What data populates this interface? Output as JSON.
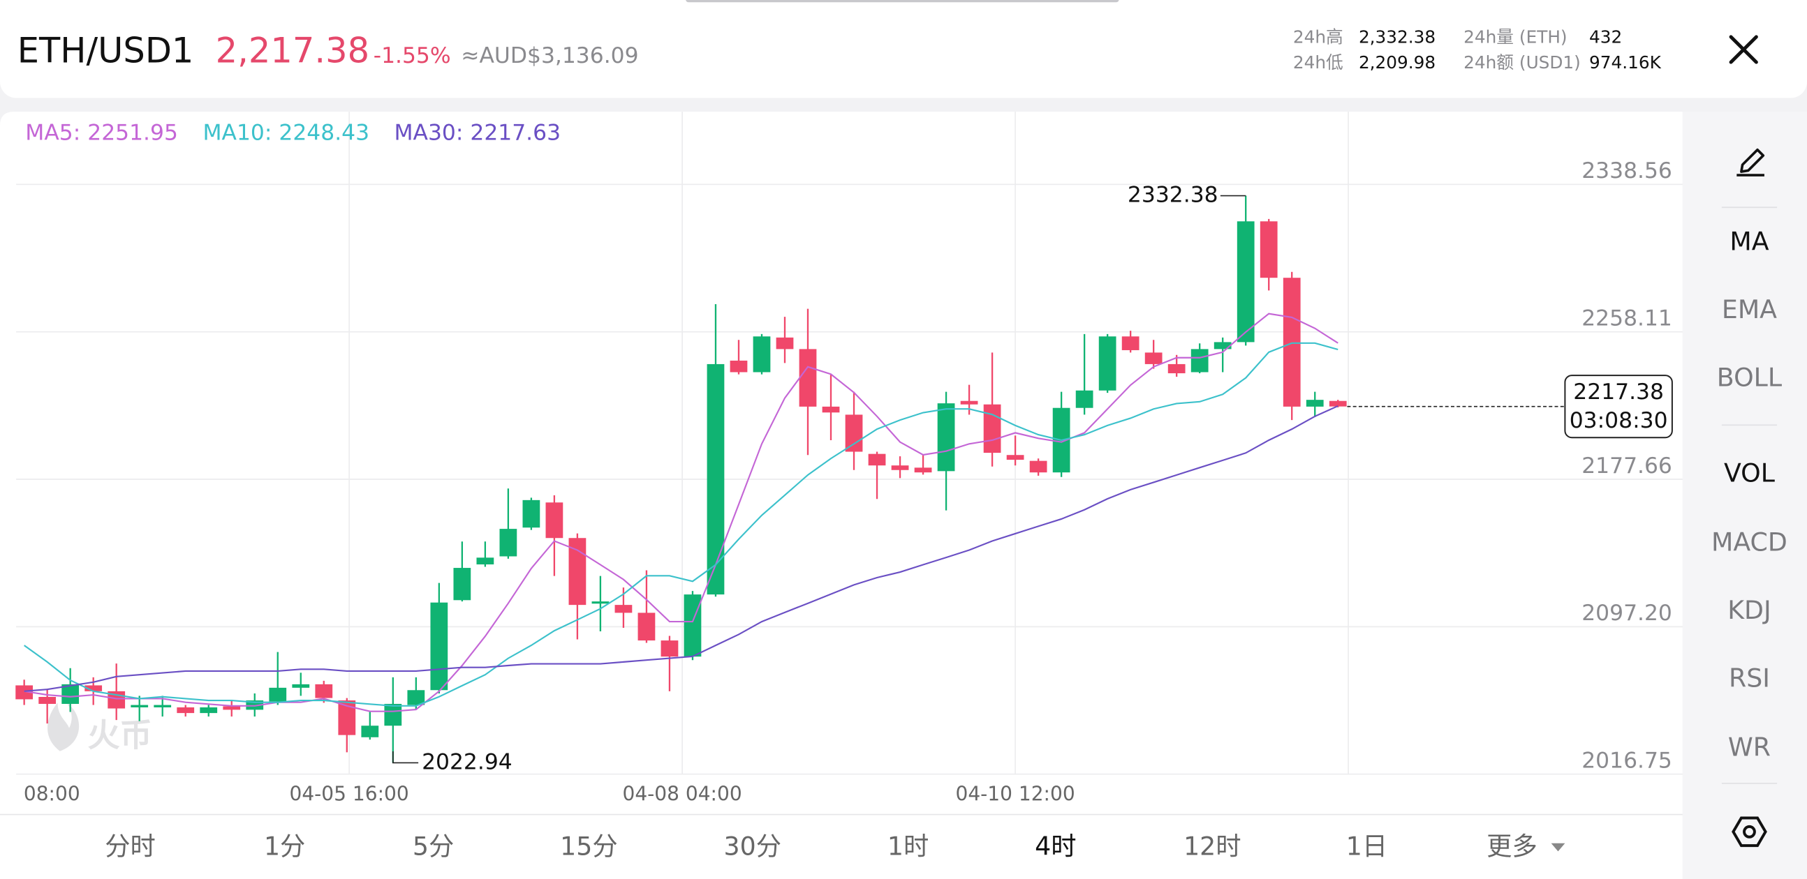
{
  "header": {
    "pair": "ETH/USD1",
    "price": "2,217.38",
    "change": "-1.55%",
    "fiat": "≈AUD$3,136.09",
    "stats": [
      {
        "label": "24h高",
        "value": "2,332.38"
      },
      {
        "label": "24h低",
        "value": "2,209.98"
      },
      {
        "label": "24h量 (ETH)",
        "value": "432"
      },
      {
        "label": "24h额 (USD1)",
        "value": "974.16K"
      }
    ]
  },
  "chart_data": {
    "type": "candlestick",
    "open": [
      2065.2,
      2058.9,
      2055.1,
      2065.2,
      2062.0,
      2053.2,
      2053.2,
      2053.2,
      2050.1,
      2053.8,
      2051.9,
      2056.4,
      2063.9,
      2065.8,
      2057.0,
      2036.9,
      2043.2,
      2054.5,
      2062.6,
      2111.7,
      2131.2,
      2135.6,
      2151.3,
      2165.0,
      2145.6,
      2109.8,
      2109.1,
      2104.8,
      2089.7,
      2080.9,
      2114.8,
      2242.4,
      2236.1,
      2255.0,
      2248.7,
      2217.3,
      2212.9,
      2191.5,
      2185.2,
      2184.0,
      2182.1,
      2220.4,
      2218.5,
      2190.9,
      2187.7,
      2181.4,
      2216.6,
      2226.1,
      2255.6,
      2246.8,
      2240.5,
      2236.1,
      2248.7,
      2252.5,
      2318.4,
      2287.6,
      2217.3,
      2220.4
    ],
    "high": [
      2068.3,
      2063.3,
      2074.6,
      2069.6,
      2077.1,
      2059.5,
      2059.5,
      2054.5,
      2054.5,
      2057.0,
      2060.8,
      2083.4,
      2072.1,
      2067.7,
      2058.3,
      2050.7,
      2069.6,
      2069.6,
      2121.1,
      2143.7,
      2143.7,
      2172.6,
      2167.6,
      2168.9,
      2148.1,
      2124.9,
      2118.6,
      2128.0,
      2092.2,
      2116.7,
      2273.2,
      2253.7,
      2256.9,
      2266.3,
      2270.7,
      2234.9,
      2225.4,
      2192.7,
      2190.2,
      2190.9,
      2225.4,
      2229.2,
      2246.8,
      2201.5,
      2189.0,
      2225.4,
      2256.9,
      2256.9,
      2258.7,
      2253.7,
      2245.5,
      2251.8,
      2255.0,
      2332.38,
      2319.7,
      2290.8,
      2225.4,
      2221.0
    ],
    "low": [
      2054.5,
      2044.4,
      2050.7,
      2054.5,
      2046.3,
      2045.7,
      2048.2,
      2048.2,
      2048.2,
      2048.2,
      2048.2,
      2054.5,
      2059.5,
      2055.7,
      2028.7,
      2035.6,
      2022.94,
      2051.9,
      2060.8,
      2111.0,
      2129.9,
      2134.3,
      2150.0,
      2124.9,
      2090.3,
      2094.7,
      2096.6,
      2088.4,
      2062.0,
      2079.0,
      2113.6,
      2234.9,
      2234.9,
      2241.1,
      2190.9,
      2199.0,
      2182.7,
      2166.9,
      2178.3,
      2180.2,
      2160.7,
      2212.9,
      2184.6,
      2185.2,
      2179.6,
      2178.9,
      2212.9,
      2224.8,
      2246.8,
      2238.0,
      2233.6,
      2235.5,
      2236.1,
      2250.6,
      2280.7,
      2209.98,
      2211.6,
      2216.9
    ],
    "close": [
      2057.6,
      2055.1,
      2065.8,
      2062.0,
      2052.6,
      2054.5,
      2054.5,
      2050.1,
      2053.2,
      2051.9,
      2057.0,
      2063.9,
      2065.8,
      2058.3,
      2038.1,
      2043.2,
      2055.1,
      2062.6,
      2110.4,
      2129.3,
      2134.9,
      2150.6,
      2166.3,
      2145.6,
      2109.1,
      2111.0,
      2104.8,
      2089.7,
      2080.9,
      2114.8,
      2240.5,
      2236.1,
      2255.6,
      2248.7,
      2217.3,
      2214.1,
      2192.7,
      2185.2,
      2182.7,
      2181.4,
      2219.1,
      2218.5,
      2192.1,
      2188.3,
      2181.4,
      2216.6,
      2226.1,
      2255.6,
      2248.1,
      2240.5,
      2235.5,
      2248.7,
      2252.5,
      2318.4,
      2287.6,
      2217.3,
      2221.0,
      2217.38
    ],
    "up_color": "#10b372",
    "down_color": "#f0476a",
    "series": [
      {
        "name": "MA5: 2251.95",
        "color": "#c466d6",
        "values": [
          2062,
          2060,
          2059,
          2060,
          2058,
          2058,
          2058,
          2056,
          2055,
          2054,
          2054,
          2056,
          2056,
          2058,
          2054,
          2051,
          2051,
          2052,
          2062,
          2076,
          2092,
          2110,
          2129,
          2144,
          2139,
          2131,
          2123,
          2112,
          2100,
          2100,
          2131,
          2164,
          2197,
          2222,
          2239,
          2235,
          2225,
          2212,
          2198,
          2191,
          2193,
          2197,
          2199,
          2203,
          2200,
          2198,
          2203,
          2216,
          2229,
          2239,
          2244,
          2244,
          2247,
          2258,
          2268,
          2266,
          2260,
          2251.95
        ]
      },
      {
        "name": "MA10: 2248.43",
        "color": "#3cc1cb",
        "values": [
          2087,
          2078,
          2068,
          2062,
          2060,
          2058,
          2059,
          2058,
          2057,
          2057,
          2056,
          2056,
          2057,
          2057,
          2056,
          2055,
          2054,
          2054,
          2059,
          2065,
          2071,
          2080,
          2087,
          2095,
          2101,
          2107,
          2115,
          2125,
          2125,
          2122,
          2131,
          2145,
          2158,
          2169,
          2180,
          2189,
          2197,
          2205,
          2210,
          2214,
          2216,
          2216,
          2213,
          2207,
          2202,
          2199,
          2202,
          2207,
          2211,
          2216,
          2219,
          2220,
          2224,
          2233,
          2247,
          2252,
          2252,
          2248.43
        ]
      },
      {
        "name": "MA30: 2217.63",
        "color": "#6a4fc4",
        "values": [
          2062,
          2063,
          2065,
          2067,
          2070,
          2071,
          2072,
          2073,
          2073,
          2073,
          2073,
          2073,
          2074,
          2074,
          2073,
          2073,
          2073,
          2073,
          2074,
          2075,
          2075,
          2076,
          2077,
          2077,
          2077,
          2077,
          2078,
          2079,
          2080,
          2081,
          2087,
          2093,
          2100,
          2105,
          2110,
          2115,
          2120,
          2124,
          2127,
          2131,
          2135,
          2139,
          2144,
          2148,
          2152,
          2156,
          2161,
          2167,
          2172,
          2176,
          2180,
          2184,
          2188,
          2192,
          2199,
          2205,
          2212,
          2217.63
        ]
      }
    ],
    "ylim": [
      2016.75,
      2378.2
    ],
    "yticks": [
      2016.75,
      {
        "value": 2097.2,
        "label": "2097.20"
      },
      2177.66,
      2258.11,
      2338.56
    ],
    "xlim": [
      -0.35,
      71.95
    ],
    "xticks": [
      {
        "value": 1.2,
        "label": "08:00"
      },
      {
        "value": 14.1,
        "label": "04-05 16:00"
      },
      {
        "value": 28.55,
        "label": "04-08 04:00"
      },
      {
        "value": 43,
        "label": "04-10 12:00"
      }
    ],
    "xgrid": [
      14.1,
      28.55,
      43,
      57.45
    ],
    "grid": true,
    "countdown": "03:08:30",
    "watermark": "火币"
  },
  "tabs": [
    "分时",
    "1分",
    "5分",
    "15分",
    "30分",
    "1时",
    "4时",
    "12时",
    "1日",
    "更多"
  ],
  "active_tab": 6,
  "side_menu": [
    "MA",
    "EMA",
    "BOLL",
    "VOL",
    "MACD",
    "KDJ",
    "RSI",
    "WR"
  ],
  "side_active": [
    0,
    3
  ]
}
